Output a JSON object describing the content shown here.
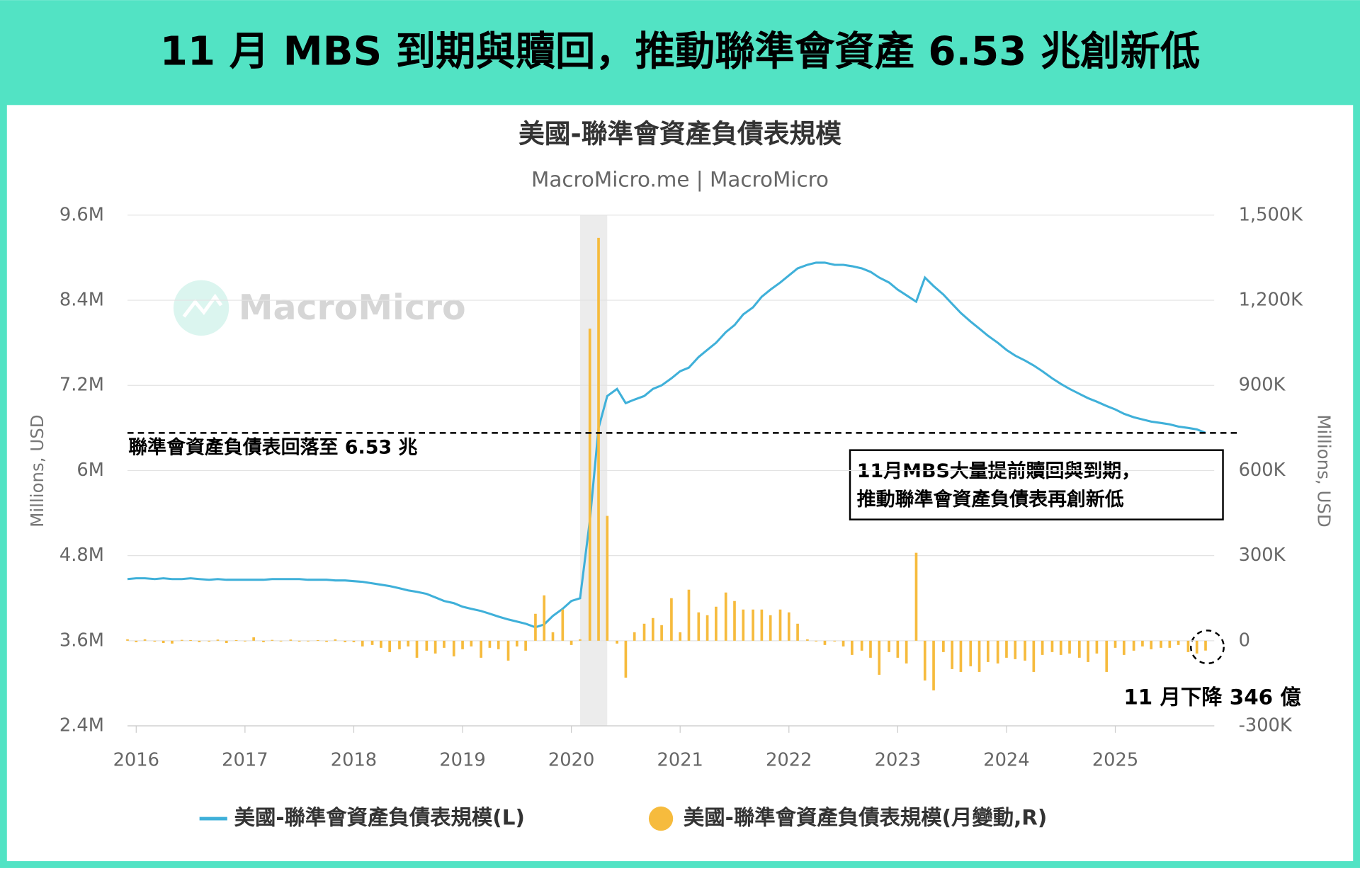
{
  "header": {
    "title": "11 月 MBS 到期與贖回，推動聯準會資產 6.53 兆創新低"
  },
  "chart_data": {
    "type": "line-bar",
    "title": "美國-聯準會資產負債表規模",
    "subtitle": "MacroMicro.me | MacroMicro",
    "watermark": "MacroMicro",
    "ylabel": "Millions, USD",
    "y2label": "Millions, USD",
    "xlim": [
      2015.92,
      2025.91
    ],
    "xticks": [
      2016,
      2017,
      2018,
      2019,
      2020,
      2021,
      2022,
      2023,
      2024,
      2025
    ],
    "ylim": [
      2.4,
      9.6
    ],
    "yticks": [
      {
        "value": 2.4,
        "label": "2.4M"
      },
      {
        "value": 3.6,
        "label": "3.6M"
      },
      {
        "value": 4.8,
        "label": "4.8M"
      },
      {
        "value": 6,
        "label": "6M"
      },
      {
        "value": 7.2,
        "label": "7.2M"
      },
      {
        "value": 8.4,
        "label": "8.4M"
      },
      {
        "value": 9.6,
        "label": "9.6M"
      }
    ],
    "y2lim": [
      -300,
      1500
    ],
    "y2ticks": [
      {
        "value": -300,
        "label": "-300K"
      },
      0,
      {
        "value": 300,
        "label": "300K"
      },
      {
        "value": 600,
        "label": "600K"
      },
      {
        "value": 900,
        "label": "900K"
      },
      {
        "value": 1200,
        "label": "1,200K"
      },
      {
        "value": 1500,
        "label": "1,500K"
      }
    ],
    "grid": true,
    "shaded_span": [
      2020.08,
      2020.33
    ],
    "reference_line": 6.53,
    "annotations": {
      "reference": "聯準會資產負債表回落至 6.53 兆",
      "box": [
        "11月MBS大量提前贖回與到期，",
        "推動聯準會資產負債表再創新低"
      ],
      "last_change": "11 月下降 346 億"
    },
    "x": [
      2015.92,
      2016.0,
      2016.08,
      2016.17,
      2016.25,
      2016.33,
      2016.42,
      2016.5,
      2016.58,
      2016.67,
      2016.75,
      2016.83,
      2016.92,
      2017.0,
      2017.08,
      2017.17,
      2017.25,
      2017.33,
      2017.42,
      2017.5,
      2017.58,
      2017.67,
      2017.75,
      2017.83,
      2017.92,
      2018.0,
      2018.08,
      2018.17,
      2018.25,
      2018.33,
      2018.42,
      2018.5,
      2018.58,
      2018.67,
      2018.75,
      2018.83,
      2018.92,
      2019.0,
      2019.08,
      2019.17,
      2019.25,
      2019.33,
      2019.42,
      2019.5,
      2019.58,
      2019.67,
      2019.75,
      2019.83,
      2019.92,
      2020.0,
      2020.08,
      2020.17,
      2020.25,
      2020.33,
      2020.42,
      2020.5,
      2020.58,
      2020.67,
      2020.75,
      2020.83,
      2020.92,
      2021.0,
      2021.08,
      2021.17,
      2021.25,
      2021.33,
      2021.42,
      2021.5,
      2021.58,
      2021.67,
      2021.75,
      2021.83,
      2021.92,
      2022.0,
      2022.08,
      2022.17,
      2022.25,
      2022.33,
      2022.42,
      2022.5,
      2022.58,
      2022.67,
      2022.75,
      2022.83,
      2022.92,
      2023.0,
      2023.08,
      2023.17,
      2023.25,
      2023.33,
      2023.42,
      2023.5,
      2023.58,
      2023.67,
      2023.75,
      2023.83,
      2023.92,
      2024.0,
      2024.08,
      2024.17,
      2024.25,
      2024.33,
      2024.42,
      2024.5,
      2024.58,
      2024.67,
      2024.75,
      2024.83,
      2024.92,
      2025.0,
      2025.08,
      2025.17,
      2025.25,
      2025.33,
      2025.42,
      2025.5,
      2025.58,
      2025.67,
      2025.75,
      2025.83
    ],
    "series": [
      {
        "name": "美國-聯準會資產負債表規模(L)",
        "color": "#3fb0d9",
        "values": [
          4.47,
          4.48,
          4.48,
          4.47,
          4.48,
          4.47,
          4.47,
          4.48,
          4.47,
          4.46,
          4.47,
          4.46,
          4.46,
          4.46,
          4.46,
          4.46,
          4.47,
          4.47,
          4.47,
          4.47,
          4.46,
          4.46,
          4.46,
          4.45,
          4.45,
          4.44,
          4.43,
          4.41,
          4.39,
          4.37,
          4.34,
          4.31,
          4.29,
          4.26,
          4.21,
          4.16,
          4.13,
          4.08,
          4.05,
          4.02,
          3.98,
          3.94,
          3.9,
          3.87,
          3.84,
          3.79,
          3.83,
          3.95,
          4.05,
          4.16,
          4.2,
          5.3,
          6.6,
          7.05,
          7.15,
          6.95,
          7.0,
          7.05,
          7.15,
          7.2,
          7.3,
          7.4,
          7.45,
          7.6,
          7.7,
          7.8,
          7.95,
          8.05,
          8.2,
          8.3,
          8.45,
          8.55,
          8.65,
          8.75,
          8.85,
          8.9,
          8.93,
          8.93,
          8.9,
          8.9,
          8.88,
          8.85,
          8.8,
          8.72,
          8.65,
          8.55,
          8.47,
          8.38,
          8.72,
          8.6,
          8.48,
          8.35,
          8.22,
          8.1,
          8.0,
          7.9,
          7.8,
          7.7,
          7.62,
          7.55,
          7.48,
          7.4,
          7.3,
          7.22,
          7.15,
          7.08,
          7.02,
          6.97,
          6.91,
          6.86,
          6.8,
          6.75,
          6.72,
          6.69,
          6.67,
          6.65,
          6.62,
          6.6,
          6.58,
          6.53
        ]
      },
      {
        "name": "美國-聯準會資產負債表規模(月變動,R)",
        "color": "#f6bb3d",
        "axis": "y2",
        "values": [
          5,
          -5,
          5,
          -3,
          -8,
          -10,
          3,
          2,
          -5,
          -3,
          4,
          -8,
          2,
          0,
          12,
          -5,
          3,
          -2,
          4,
          -3,
          0,
          2,
          -4,
          5,
          -5,
          -5,
          -20,
          -15,
          -25,
          -40,
          -30,
          -20,
          -60,
          -35,
          -45,
          -25,
          -55,
          -30,
          -20,
          -60,
          -25,
          -30,
          -70,
          -20,
          -35,
          95,
          160,
          30,
          110,
          -15,
          5,
          1100,
          1420,
          440,
          -10,
          -130,
          30,
          60,
          80,
          55,
          150,
          30,
          180,
          100,
          90,
          120,
          170,
          140,
          110,
          110,
          110,
          90,
          110,
          100,
          60,
          5,
          0,
          -15,
          0,
          -20,
          -50,
          -35,
          -60,
          -120,
          -40,
          -60,
          -80,
          310,
          -140,
          -175,
          -40,
          -100,
          -110,
          -90,
          -110,
          -75,
          -80,
          -60,
          -65,
          -70,
          -110,
          -50,
          -40,
          -50,
          -45,
          -60,
          -75,
          -45,
          -110,
          -25,
          -50,
          -35,
          -20,
          -30,
          -25,
          -25,
          -15,
          -40,
          -45,
          -34.6
        ]
      }
    ]
  }
}
